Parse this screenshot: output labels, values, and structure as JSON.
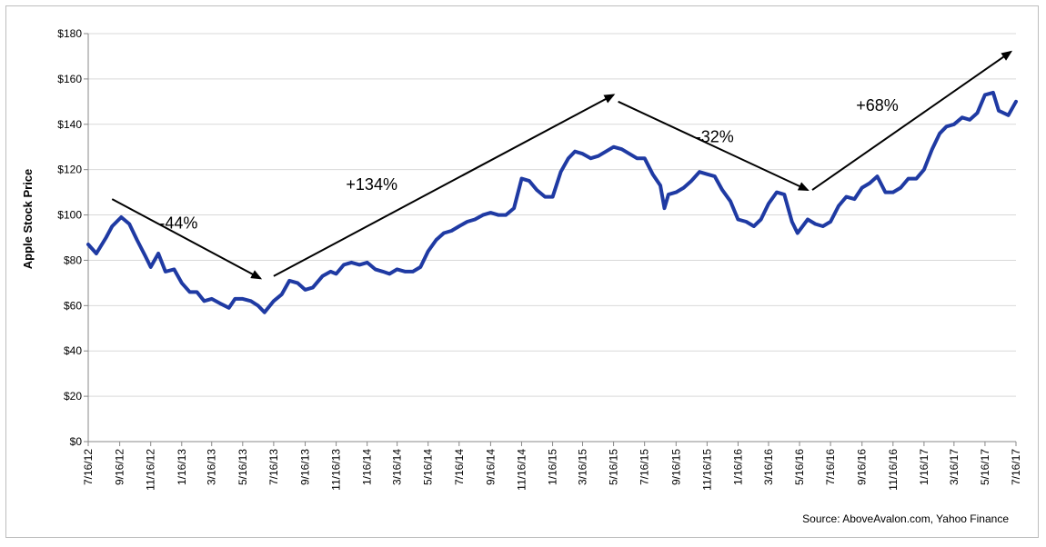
{
  "chart_data": {
    "type": "line",
    "title": "",
    "xlabel": "",
    "ylabel": "Apple Stock Price",
    "ylim": [
      0,
      180
    ],
    "y_ticks": [
      "$0",
      "$20",
      "$40",
      "$60",
      "$80",
      "$100",
      "$120",
      "$140",
      "$160",
      "$180"
    ],
    "y_tick_values": [
      0,
      20,
      40,
      60,
      80,
      100,
      120,
      140,
      160,
      180
    ],
    "x_ticks": [
      "7/16/12",
      "9/16/12",
      "11/16/12",
      "1/16/13",
      "3/16/13",
      "5/16/13",
      "7/16/13",
      "9/16/13",
      "11/16/13",
      "1/16/14",
      "3/16/14",
      "5/16/14",
      "7/16/14",
      "9/16/14",
      "11/16/14",
      "1/16/15",
      "3/16/15",
      "5/16/15",
      "7/16/15",
      "9/16/15",
      "11/16/15",
      "1/16/16",
      "3/16/16",
      "5/16/16",
      "7/16/16",
      "9/16/16",
      "11/16/16",
      "1/16/17",
      "3/16/17",
      "5/16/17",
      "7/16/17"
    ],
    "grid": "horizontal",
    "legend": "none",
    "line_color": "#1f3aa3",
    "series": [
      {
        "x": [
          "2012-07-16",
          "2012-08-01",
          "2012-08-20",
          "2012-09-01",
          "2012-09-19",
          "2012-10-05",
          "2012-10-20",
          "2012-11-05",
          "2012-11-16",
          "2012-12-01",
          "2012-12-15",
          "2013-01-01",
          "2013-01-16",
          "2013-02-01",
          "2013-02-15",
          "2013-03-01",
          "2013-03-16",
          "2013-04-01",
          "2013-04-19",
          "2013-05-01",
          "2013-05-16",
          "2013-06-01",
          "2013-06-15",
          "2013-06-28",
          "2013-07-16",
          "2013-08-01",
          "2013-08-16",
          "2013-09-01",
          "2013-09-16",
          "2013-10-01",
          "2013-10-20",
          "2013-11-05",
          "2013-11-16",
          "2013-12-01",
          "2013-12-16",
          "2014-01-01",
          "2014-01-16",
          "2014-02-01",
          "2014-02-16",
          "2014-03-01",
          "2014-03-16",
          "2014-04-01",
          "2014-04-16",
          "2014-05-01",
          "2014-05-16",
          "2014-06-01",
          "2014-06-16",
          "2014-07-01",
          "2014-07-16",
          "2014-08-01",
          "2014-08-16",
          "2014-09-01",
          "2014-09-16",
          "2014-10-01",
          "2014-10-16",
          "2014-11-01",
          "2014-11-16",
          "2014-12-01",
          "2014-12-16",
          "2015-01-01",
          "2015-01-16",
          "2015-02-01",
          "2015-02-16",
          "2015-03-01",
          "2015-03-16",
          "2015-04-01",
          "2015-04-16",
          "2015-05-01",
          "2015-05-16",
          "2015-06-01",
          "2015-06-16",
          "2015-07-01",
          "2015-07-16",
          "2015-08-01",
          "2015-08-16",
          "2015-08-24",
          "2015-09-01",
          "2015-09-16",
          "2015-10-01",
          "2015-10-16",
          "2015-11-01",
          "2015-11-16",
          "2015-12-01",
          "2015-12-16",
          "2016-01-01",
          "2016-01-16",
          "2016-02-01",
          "2016-02-16",
          "2016-03-01",
          "2016-03-16",
          "2016-04-01",
          "2016-04-16",
          "2016-05-01",
          "2016-05-12",
          "2016-06-01",
          "2016-06-16",
          "2016-07-01",
          "2016-07-16",
          "2016-08-01",
          "2016-08-16",
          "2016-09-01",
          "2016-09-16",
          "2016-10-01",
          "2016-10-16",
          "2016-11-01",
          "2016-11-16",
          "2016-12-01",
          "2016-12-16",
          "2017-01-01",
          "2017-01-16",
          "2017-02-01",
          "2017-02-16",
          "2017-03-01",
          "2017-03-16",
          "2017-04-01",
          "2017-04-16",
          "2017-05-01",
          "2017-05-16",
          "2017-06-01",
          "2017-06-12",
          "2017-07-01",
          "2017-07-16"
        ],
        "y": [
          87,
          83,
          90,
          95,
          99,
          96,
          89,
          82,
          77,
          83,
          75,
          76,
          70,
          66,
          66,
          62,
          63,
          61,
          59,
          63,
          63,
          62,
          60,
          57,
          62,
          65,
          71,
          70,
          67,
          68,
          73,
          75,
          74,
          78,
          79,
          78,
          79,
          76,
          75,
          74,
          76,
          75,
          75,
          77,
          84,
          89,
          92,
          93,
          95,
          97,
          98,
          100,
          101,
          100,
          100,
          103,
          116,
          115,
          111,
          108,
          108,
          119,
          125,
          128,
          127,
          125,
          126,
          128,
          130,
          129,
          127,
          125,
          125,
          118,
          113,
          103,
          109,
          110,
          112,
          115,
          119,
          118,
          117,
          111,
          106,
          98,
          97,
          95,
          98,
          105,
          110,
          109,
          97,
          92,
          98,
          96,
          95,
          97,
          104,
          108,
          107,
          112,
          114,
          117,
          110,
          110,
          112,
          116,
          116,
          120,
          129,
          136,
          139,
          140,
          143,
          142,
          145,
          153,
          154,
          146,
          144,
          150
        ]
      }
    ],
    "annotations": [
      {
        "text": "-44%",
        "x": "2013-01-10",
        "y": 94
      },
      {
        "text": "+134%",
        "x": "2014-01-25",
        "y": 111
      },
      {
        "text": "-32%",
        "x": "2015-12-01",
        "y": 132
      },
      {
        "text": "+68%",
        "x": "2016-10-16",
        "y": 146
      }
    ],
    "source": "Source: AboveAvalon.com, Yahoo Finance"
  }
}
